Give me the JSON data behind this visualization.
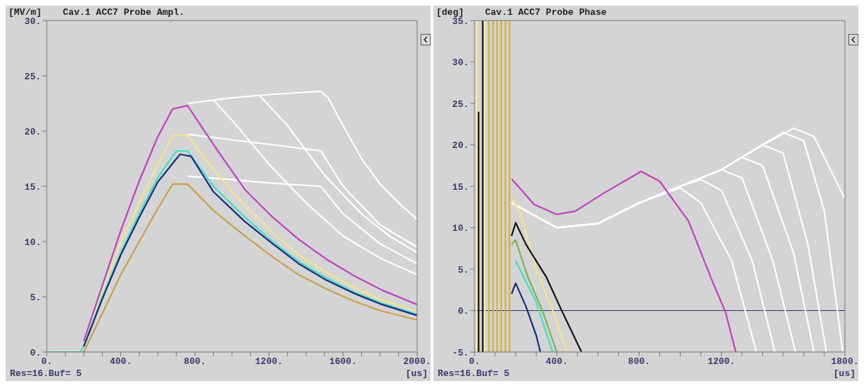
{
  "chart_data": [
    {
      "type": "line",
      "title": "Cav.1 ACC7 Probe Ampl.",
      "ylabel": "[MV/m]",
      "xlabel": "[us]",
      "annotations": [
        "Res=16.Buf= 5"
      ],
      "marker": "none",
      "xlim": [
        0,
        2000
      ],
      "ylim": [
        0,
        30
      ],
      "xticks": [
        {
          "value": 0,
          "label": "0."
        },
        {
          "value": 100,
          "label": null
        },
        {
          "value": 200,
          "label": null
        },
        {
          "value": 300,
          "label": null
        },
        {
          "value": 400,
          "label": "400."
        },
        {
          "value": 500,
          "label": null
        },
        {
          "value": 600,
          "label": null
        },
        {
          "value": 700,
          "label": null
        },
        {
          "value": 800,
          "label": "800."
        },
        {
          "value": 900,
          "label": null
        },
        {
          "value": 1000,
          "label": null
        },
        {
          "value": 1100,
          "label": null
        },
        {
          "value": 1200,
          "label": "1200."
        },
        {
          "value": 1300,
          "label": null
        },
        {
          "value": 1400,
          "label": null
        },
        {
          "value": 1500,
          "label": null
        },
        {
          "value": 1600,
          "label": "1600."
        },
        {
          "value": 1700,
          "label": null
        },
        {
          "value": 1800,
          "label": null
        },
        {
          "value": 1900,
          "label": null
        },
        {
          "value": 2000,
          "label": "2000."
        }
      ],
      "yticks": [
        {
          "value": 0,
          "label": "0."
        },
        {
          "value": 5,
          "label": "5."
        },
        {
          "value": 10,
          "label": "10."
        },
        {
          "value": 15,
          "label": "15."
        },
        {
          "value": 20,
          "label": "20."
        },
        {
          "value": 25,
          "label": "25."
        },
        {
          "value": 30,
          "label": "30."
        }
      ],
      "series": [
        {
          "color": "#ffffff",
          "x": [
            760,
            1000,
            1200,
            1480,
            1520,
            1600,
            1700,
            1800,
            1900,
            2000
          ],
          "values": [
            22.5,
            23,
            23.3,
            23.6,
            23,
            20.5,
            17.5,
            15.2,
            13.5,
            12
          ]
        },
        {
          "color": "#ffffff",
          "x": [
            900,
            1000,
            1200,
            1400,
            1600,
            1800,
            2000
          ],
          "values": [
            22.8,
            21,
            17,
            13.5,
            10.5,
            8.5,
            7
          ]
        },
        {
          "color": "#ffffff",
          "x": [
            1150,
            1300,
            1500,
            1700,
            1850,
            2000
          ],
          "values": [
            23.2,
            20.5,
            16,
            12.5,
            10.5,
            9
          ]
        },
        {
          "color": "#ffffff",
          "x": [
            760,
            1000,
            1200,
            1480,
            1600,
            1800,
            2000
          ],
          "values": [
            19.7,
            19.2,
            18.8,
            18.2,
            15,
            11.5,
            9.5
          ]
        },
        {
          "color": "#ffffff",
          "x": [
            760,
            1000,
            1200,
            1480,
            1600,
            1800,
            2000
          ],
          "values": [
            15.9,
            15.6,
            15.3,
            15,
            12.5,
            9.8,
            8
          ]
        },
        {
          "color": "#c8a050",
          "x": [
            0,
            180,
            200,
            300,
            400,
            500,
            600,
            680,
            760,
            900,
            1070,
            1220,
            1360,
            1510,
            1660,
            1810,
            2000
          ],
          "values": [
            0,
            0,
            0,
            3.5,
            7,
            10,
            13,
            15.2,
            15.2,
            12.8,
            10.5,
            8.6,
            7,
            5.7,
            4.6,
            3.7,
            2.9
          ]
        },
        {
          "color": "#f0e68c",
          "x": [
            0,
            180,
            200,
            300,
            400,
            500,
            600,
            680,
            760,
            900,
            1070,
            1220,
            1360,
            1510,
            1660,
            1810,
            2000
          ],
          "values": [
            0,
            0,
            0.5,
            5.5,
            10,
            13.5,
            17,
            19.6,
            19.6,
            16.5,
            13.2,
            10.8,
            8.8,
            7.2,
            5.8,
            4.7,
            3.7
          ]
        },
        {
          "color": "#40e0c0",
          "x": [
            0,
            180,
            200,
            300,
            400,
            500,
            600,
            700,
            760,
            900,
            1070,
            1220,
            1360,
            1510,
            1660,
            1810,
            2000
          ],
          "values": [
            0,
            0,
            0.5,
            5,
            9,
            12.5,
            15.8,
            18.2,
            18.2,
            15,
            12.2,
            10,
            8.2,
            6.7,
            5.4,
            4.4,
            3.4
          ]
        },
        {
          "color": "#1a2a7e",
          "x": [
            200,
            300,
            400,
            500,
            600,
            720,
            780,
            900,
            1070,
            1220,
            1360,
            1510,
            1660,
            1810,
            2000
          ],
          "values": [
            0.5,
            4.8,
            8.8,
            12.2,
            15.4,
            17.9,
            17.7,
            14.5,
            11.8,
            9.8,
            8,
            6.5,
            5.3,
            4.3,
            3.3
          ]
        },
        {
          "color": "#c040c0",
          "x": [
            200,
            300,
            400,
            500,
            600,
            680,
            760,
            920,
            1070,
            1220,
            1360,
            1510,
            1660,
            1810,
            2000
          ],
          "values": [
            1,
            6,
            11,
            15.5,
            19.5,
            22,
            22.3,
            18.3,
            14.7,
            12.2,
            10.2,
            8.4,
            6.9,
            5.6,
            4.3
          ]
        }
      ]
    },
    {
      "type": "line",
      "title": "Cav.1 ACC7 Probe Phase",
      "ylabel": "[deg]",
      "xlabel": "[us]",
      "annotations": [
        "Res=16.Buf= 5"
      ],
      "marker": "none",
      "xlim": [
        0,
        1800
      ],
      "ylim": [
        -5,
        35
      ],
      "xticks": [
        {
          "value": 0,
          "label": "0."
        },
        {
          "value": 100,
          "label": null
        },
        {
          "value": 200,
          "label": null
        },
        {
          "value": 300,
          "label": null
        },
        {
          "value": 400,
          "label": "400."
        },
        {
          "value": 500,
          "label": null
        },
        {
          "value": 600,
          "label": null
        },
        {
          "value": 700,
          "label": null
        },
        {
          "value": 800,
          "label": "800."
        },
        {
          "value": 900,
          "label": null
        },
        {
          "value": 1000,
          "label": null
        },
        {
          "value": 1100,
          "label": null
        },
        {
          "value": 1200,
          "label": "1200."
        },
        {
          "value": 1300,
          "label": null
        },
        {
          "value": 1400,
          "label": null
        },
        {
          "value": 1500,
          "label": null
        },
        {
          "value": 1600,
          "label": null
        },
        {
          "value": 1700,
          "label": null
        },
        {
          "value": 1800,
          "label": "1800."
        }
      ],
      "yticks": [
        {
          "value": -5,
          "label": "-5."
        },
        {
          "value": 0,
          "label": "0."
        },
        {
          "value": 5,
          "label": "5."
        },
        {
          "value": 10,
          "label": "10."
        },
        {
          "value": 15,
          "label": "15."
        },
        {
          "value": 20,
          "label": "20."
        },
        {
          "value": 25,
          "label": "25."
        },
        {
          "value": 30,
          "label": "30."
        },
        {
          "value": 35,
          "label": "35."
        }
      ],
      "ref_lines": [
        {
          "axis": "y",
          "value": 0,
          "color": "#2a2a6e"
        }
      ],
      "series": [
        {
          "color": "#f5ec9a",
          "x": [
            10,
            10
          ],
          "values": [
            -5,
            35
          ]
        },
        {
          "color": "#f5ec9a",
          "x": [
            50,
            50
          ],
          "values": [
            -5,
            35
          ]
        },
        {
          "color": "#d4b040",
          "x": [
            70,
            70
          ],
          "values": [
            -5,
            35
          ]
        },
        {
          "color": "#d4b040",
          "x": [
            90,
            90
          ],
          "values": [
            -5,
            35
          ]
        },
        {
          "color": "#d4b040",
          "x": [
            110,
            110
          ],
          "values": [
            -5,
            35
          ]
        },
        {
          "color": "#d4b040",
          "x": [
            130,
            130
          ],
          "values": [
            -5,
            35
          ]
        },
        {
          "color": "#d4b040",
          "x": [
            150,
            150
          ],
          "values": [
            -5,
            35
          ]
        },
        {
          "color": "#d4b040",
          "x": [
            170,
            170
          ],
          "values": [
            -5,
            35
          ]
        },
        {
          "color": "#111111",
          "x": [
            20,
            20
          ],
          "values": [
            -5,
            24
          ]
        },
        {
          "color": "#111111",
          "x": [
            40,
            40
          ],
          "values": [
            -5,
            35
          ]
        },
        {
          "color": "#ffffff",
          "x": [
            180,
            400,
            600,
            800,
            1000,
            1100,
            1250,
            1370
          ],
          "values": [
            13,
            10,
            10.5,
            13,
            14.8,
            13,
            6,
            -5
          ]
        },
        {
          "color": "#ffffff",
          "x": [
            180,
            400,
            600,
            800,
            1000,
            1100,
            1200,
            1350,
            1460
          ],
          "values": [
            13,
            10,
            10.5,
            13,
            15,
            15.8,
            14.5,
            6,
            -5
          ]
        },
        {
          "color": "#ffffff",
          "x": [
            180,
            400,
            600,
            800,
            1000,
            1200,
            1300,
            1450,
            1560
          ],
          "values": [
            13,
            10,
            10.5,
            13,
            15,
            17,
            16,
            6,
            -5
          ]
        },
        {
          "color": "#ffffff",
          "x": [
            180,
            400,
            600,
            800,
            1000,
            1200,
            1300,
            1400,
            1550,
            1650
          ],
          "values": [
            13,
            10,
            10.5,
            13,
            15,
            17,
            18.5,
            17.5,
            7,
            -5
          ]
        },
        {
          "color": "#ffffff",
          "x": [
            180,
            400,
            600,
            800,
            1000,
            1200,
            1400,
            1500,
            1620,
            1710
          ],
          "values": [
            13,
            10,
            10.5,
            13,
            15,
            17,
            20,
            19,
            8,
            -5
          ]
        },
        {
          "color": "#ffffff",
          "x": [
            180,
            400,
            600,
            800,
            1000,
            1200,
            1400,
            1500,
            1600,
            1700,
            1790
          ],
          "values": [
            13,
            10,
            10.5,
            13,
            15,
            17,
            20,
            21.5,
            20.5,
            12,
            -5
          ]
        },
        {
          "color": "#ffffff",
          "x": [
            180,
            400,
            600,
            800,
            1000,
            1200,
            1400,
            1550,
            1650,
            1800
          ],
          "values": [
            13,
            10,
            10.5,
            13,
            15,
            17,
            20,
            22,
            21,
            13.5
          ]
        },
        {
          "color": "#40e0c0",
          "x": [
            200,
            300,
            380
          ],
          "values": [
            6,
            1,
            -5
          ]
        },
        {
          "color": "#80b050",
          "x": [
            180,
            200,
            260,
            330,
            400
          ],
          "values": [
            8,
            8.5,
            4,
            0,
            -5
          ]
        },
        {
          "color": "#f0e68c",
          "x": [
            180,
            220,
            300,
            380,
            450
          ],
          "values": [
            13.5,
            12,
            5,
            0,
            -5
          ]
        },
        {
          "color": "#1a2a7e",
          "x": [
            180,
            200,
            250,
            300,
            320
          ],
          "values": [
            2,
            3.3,
            0.5,
            -3,
            -5
          ]
        },
        {
          "color": "#111111",
          "x": [
            180,
            200,
            250,
            350,
            420,
            520
          ],
          "values": [
            9,
            10.6,
            8,
            4,
            0.2,
            -5
          ]
        },
        {
          "color": "#c040c0",
          "x": [
            180,
            290,
            400,
            490,
            630,
            810,
            900,
            1040,
            1150,
            1220,
            1270
          ],
          "values": [
            15.9,
            12.8,
            11.6,
            12,
            14.2,
            16.8,
            15.6,
            10.8,
            3.9,
            -0.2,
            -5
          ]
        }
      ]
    }
  ]
}
